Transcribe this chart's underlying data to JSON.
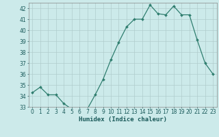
{
  "x": [
    0,
    1,
    2,
    3,
    4,
    5,
    6,
    7,
    8,
    9,
    10,
    11,
    12,
    13,
    14,
    15,
    16,
    17,
    18,
    19,
    20,
    21,
    22,
    23
  ],
  "y": [
    34.3,
    34.8,
    34.1,
    34.1,
    33.3,
    32.8,
    32.8,
    32.8,
    34.1,
    35.5,
    37.3,
    38.9,
    40.3,
    41.0,
    41.0,
    42.3,
    41.5,
    41.4,
    42.2,
    41.4,
    41.4,
    39.1,
    37.0,
    36.0
  ],
  "line_color": "#2e7d6e",
  "marker": "D",
  "marker_size": 2.0,
  "bg_color": "#cceaea",
  "grid_color": "#b0cccc",
  "xlabel": "Humidex (Indice chaleur)",
  "ylim": [
    33,
    42.5
  ],
  "xlim": [
    -0.5,
    23.5
  ],
  "yticks": [
    33,
    34,
    35,
    36,
    37,
    38,
    39,
    40,
    41,
    42
  ],
  "xticks": [
    0,
    1,
    2,
    3,
    4,
    5,
    6,
    7,
    8,
    9,
    10,
    11,
    12,
    13,
    14,
    15,
    16,
    17,
    18,
    19,
    20,
    21,
    22,
    23
  ],
  "axis_fontsize": 6.5,
  "tick_fontsize": 5.5,
  "linewidth": 0.9
}
